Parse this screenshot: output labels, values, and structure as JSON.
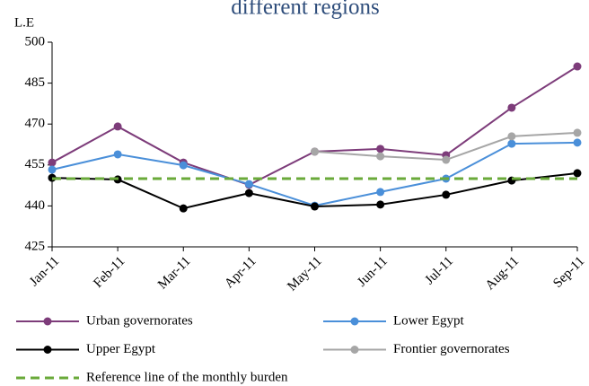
{
  "chart_data": {
    "type": "line",
    "title": "different regions",
    "y_label": "L.E",
    "categories": [
      "Jan-11",
      "Feb-11",
      "Mar-11",
      "Apr-11",
      "May-11",
      "Jun-11",
      "Jul-11",
      "Aug-11",
      "Sep-11"
    ],
    "series": [
      {
        "name": "Urban governorates",
        "color": "#7d3c7a",
        "values": [
          455.9,
          469.1,
          455.9,
          447.7,
          459.9,
          460.9,
          458.6,
          476,
          491.1
        ]
      },
      {
        "name": "Lower Egypt",
        "color": "#4a8fd9",
        "values": [
          453.3,
          458.9,
          454.9,
          448,
          440.1,
          445.1,
          450,
          462.8,
          463.2
        ]
      },
      {
        "name": "Upper Egypt",
        "color": "#000000",
        "values": [
          450.3,
          449.7,
          439.1,
          444.7,
          439.8,
          440.5,
          444.1,
          449.3,
          452
        ]
      },
      {
        "name": "Frontier governorates",
        "color": "#a6a6a6",
        "values": [
          null,
          null,
          null,
          null,
          459.9,
          458.2,
          456.9,
          465.5,
          466.8
        ]
      },
      {
        "name": "Reference line of the monthly burden",
        "color": "#6aaa3a",
        "dashed": true,
        "markers": false,
        "values": [
          450,
          450,
          450,
          450,
          450,
          450,
          450,
          450,
          450
        ]
      }
    ],
    "ylim": [
      425,
      500
    ],
    "yticks": [
      425,
      440,
      455,
      470,
      485,
      500
    ],
    "grid": false,
    "legend": "bottom"
  }
}
